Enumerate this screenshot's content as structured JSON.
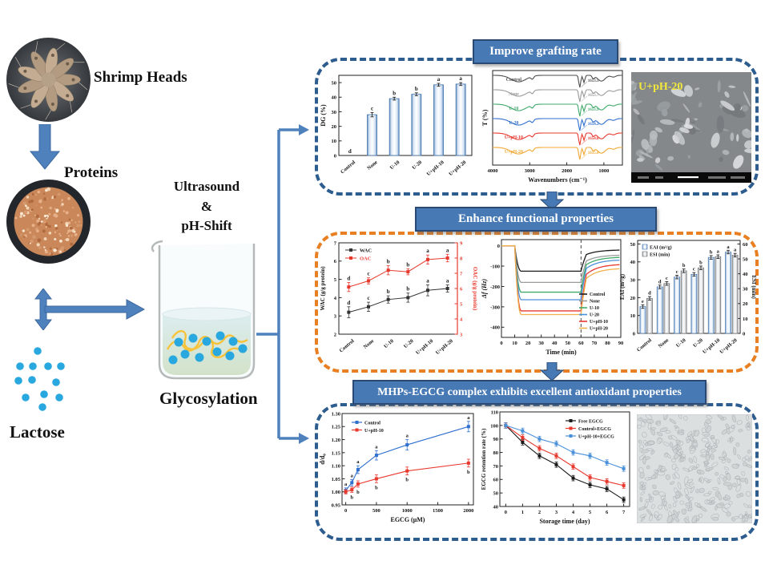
{
  "left_flow": {
    "shrimp_label": "Shrimp Heads",
    "proteins_label": "Proteins",
    "ultrasound_lines": [
      "Ultrasound",
      "&",
      "pH-Shift"
    ],
    "glycosylation_label": "Glycosylation",
    "lactose_label": "Lactose"
  },
  "panels": [
    {
      "title": "Improve grafting rate",
      "accent": "#2d5c8e"
    },
    {
      "title": "Enhance functional properties",
      "accent": "#e87f22"
    },
    {
      "title": "MHPs-EGCG complex exhibits excellent antioxidant properties",
      "accent": "#2d5c8e"
    }
  ],
  "sem_label": "U+pH-20",
  "colors": {
    "arrow_blue": "#4f81bd",
    "arrow_edge": "#3c68a0",
    "header_bg": "#4779b5",
    "header_border": "#2b4a73",
    "panel_blue": "#2d5c8e",
    "panel_orange": "#e87f22",
    "lactose_dot": "#29a8e0"
  },
  "chart_data": [
    {
      "id": "dg_bar",
      "type": "bar",
      "ylabel": "DG (%)",
      "categories": [
        "Control",
        "None",
        "U-10",
        "U-20",
        "U+pH-10",
        "U+pH-20"
      ],
      "values": [
        0,
        28,
        39,
        42,
        48.5,
        49
      ],
      "errors": [
        0,
        1.5,
        1,
        1,
        1,
        1
      ],
      "letters": [
        "d",
        "c",
        "b",
        "b",
        "a",
        "a"
      ],
      "ylim": [
        0,
        55
      ],
      "yticks": [
        0,
        10,
        20,
        30,
        40,
        50
      ]
    },
    {
      "id": "ftir",
      "type": "line",
      "xlabel": "Wavenumbers (cm⁻¹)",
      "ylabel": "T (%)",
      "xlim": [
        4000,
        500
      ],
      "xticks": [
        4000,
        3000,
        2000,
        1000
      ],
      "series": [
        {
          "name": "Control",
          "color": "#4d4d4d",
          "peak_label": "1653.5"
        },
        {
          "name": "None",
          "color": "#9a9a9a",
          "peak_label": "1653.7"
        },
        {
          "name": "U-10",
          "color": "#3fa96a",
          "peak_label": "1653.9"
        },
        {
          "name": "U-20",
          "color": "#2f6fce",
          "peak_label": "1654.2"
        },
        {
          "name": "U+pH-10",
          "color": "#e8392e",
          "peak_label": "1654.8"
        },
        {
          "name": "U+pH-20",
          "color": "#f0a830",
          "peak_label": "1655.0"
        }
      ],
      "note": "stacked FTIR transmittance curves, amide I peak positions annotated"
    },
    {
      "id": "wac_oac",
      "type": "line",
      "categories": [
        "Control",
        "None",
        "U-10",
        "U-20",
        "U+pH-10",
        "U+pH-20"
      ],
      "left": {
        "label": "WAC (g/g protein)",
        "ylim": [
          2,
          7
        ],
        "yticks": [
          2,
          3,
          4,
          5,
          6,
          7
        ],
        "name": "WAC",
        "color": "#333333",
        "values": [
          3.2,
          3.5,
          3.9,
          4.0,
          4.4,
          4.5
        ],
        "errors": [
          0.3,
          0.25,
          0.2,
          0.25,
          0.3,
          0.2
        ],
        "letters": [
          "d",
          "c",
          "b",
          "b",
          "a",
          "a"
        ]
      },
      "right": {
        "label": "OAC (g/g protein)",
        "ylim": [
          3,
          9
        ],
        "yticks": [
          3,
          4,
          5,
          6,
          7,
          8,
          9
        ],
        "name": "OAC",
        "color": "#e8392e",
        "values": [
          6.1,
          6.5,
          7.2,
          7.1,
          7.9,
          8.0
        ],
        "errors": [
          0.3,
          0.2,
          0.3,
          0.2,
          0.3,
          0.25
        ],
        "letters": [
          "d",
          "c",
          "b",
          "b",
          "a",
          "a"
        ]
      }
    },
    {
      "id": "qcm",
      "type": "line",
      "xlabel": "Time (min)",
      "ylabel": "Δf (Hz)",
      "xlim": [
        0,
        90
      ],
      "xticks": [
        0,
        10,
        20,
        30,
        40,
        50,
        60,
        70,
        80,
        90
      ],
      "ylim": [
        -450,
        30
      ],
      "yticks": [
        0,
        -100,
        -200,
        -300,
        -400
      ],
      "dashed_line_x": 60,
      "series": [
        {
          "name": "Control",
          "color": "#1a1a1a",
          "plateau": -125,
          "end": -20
        },
        {
          "name": "None",
          "color": "#9a9a9a",
          "plateau": -180,
          "end": -45
        },
        {
          "name": "U-10",
          "color": "#3fa96a",
          "plateau": -228,
          "end": -55
        },
        {
          "name": "U-20",
          "color": "#4a90d9",
          "plateau": -265,
          "end": -68
        },
        {
          "name": "U+pH-10",
          "color": "#e8392e",
          "plateau": -320,
          "end": -90
        },
        {
          "name": "U+pH-20",
          "color": "#f0b04a",
          "plateau": -338,
          "end": -110
        }
      ]
    },
    {
      "id": "eai_esi",
      "type": "bar",
      "categories": [
        "Control",
        "None",
        "U-10",
        "U-20",
        "U+pH-10",
        "U+pH-20"
      ],
      "left": {
        "legend": "EAI (m²/g)",
        "label": "EAI (m²/g)",
        "ylim": [
          0,
          52
        ],
        "yticks": [
          0,
          10,
          20,
          30,
          40,
          50
        ],
        "values": [
          15,
          26,
          31.5,
          33,
          42.5,
          45.5
        ],
        "errors": [
          1,
          1,
          1,
          1,
          1,
          1
        ],
        "letters": [
          "e",
          "d",
          "c",
          "c",
          "b",
          "a"
        ]
      },
      "right": {
        "legend": "ESI (min)",
        "label": "ESI (min)",
        "ylim": [
          0,
          62.4
        ],
        "yticks": [
          0,
          10,
          20,
          30,
          40,
          50,
          60
        ],
        "values": [
          23.5,
          33.5,
          42,
          44,
          51.5,
          52.5
        ],
        "errors": [
          1.2,
          1.2,
          1.2,
          1.2,
          1.2,
          1.2
        ],
        "letters": [
          "d",
          "c",
          "b",
          "b",
          "a",
          "a"
        ]
      }
    },
    {
      "id": "dd0",
      "type": "line",
      "xlabel": "EGCG (μM)",
      "ylabel": "d/d₀",
      "xlim": [
        -60,
        2080
      ],
      "xticks": [
        0,
        500,
        1000,
        1500,
        2000
      ],
      "ylim": [
        0.95,
        1.3
      ],
      "yticks": [
        0.95,
        1.0,
        1.05,
        1.1,
        1.15,
        1.2,
        1.25,
        1.3
      ],
      "ytick_labels": [
        "0.95",
        "1.00",
        "1.05",
        "1.10",
        "1.15",
        "1.20",
        "1.25",
        "1.30"
      ],
      "x": [
        0,
        100,
        200,
        500,
        1000,
        2000
      ],
      "legend_pos": "top-left",
      "series": [
        {
          "name": "Control",
          "color": "#2f6fce",
          "values": [
            1.005,
            1.035,
            1.085,
            1.14,
            1.18,
            1.25
          ],
          "errors": [
            0.01,
            0.012,
            0.015,
            0.018,
            0.02,
            0.02
          ],
          "letters": [
            "a",
            "a",
            "a",
            "a",
            "a",
            "a"
          ],
          "letter_pos": "above"
        },
        {
          "name": "U+pH-10",
          "color": "#e8392e",
          "values": [
            1.0,
            1.008,
            1.03,
            1.05,
            1.08,
            1.11
          ],
          "errors": [
            0.008,
            0.01,
            0.012,
            0.015,
            0.015,
            0.015
          ],
          "letters": [
            "",
            "b",
            "b",
            "b",
            "b",
            "b"
          ],
          "letter_pos": "below"
        }
      ]
    },
    {
      "id": "retention",
      "type": "line",
      "xlabel": "Storage time (day)",
      "ylabel": "EGCG retention rate (%)",
      "xlim": [
        -0.35,
        7.35
      ],
      "xticks": [
        0,
        1,
        2,
        3,
        4,
        5,
        6,
        7
      ],
      "ylim": [
        40,
        110
      ],
      "yticks": [
        40,
        50,
        60,
        70,
        80,
        90,
        100,
        110
      ],
      "ytick_labels": [
        "40",
        "50",
        "60",
        "70",
        "80",
        "90",
        "100",
        "110"
      ],
      "x": [
        0,
        1,
        2,
        3,
        4,
        5,
        6,
        7
      ],
      "err": 2,
      "legend_pos": "top-right",
      "series": [
        {
          "name": "Free EGCG",
          "color": "#1a1a1a",
          "values": [
            100,
            87.5,
            77.5,
            71,
            61,
            56,
            53,
            45
          ]
        },
        {
          "name": "Control+EGCG",
          "color": "#e8392e",
          "values": [
            100,
            91,
            83,
            77.5,
            69.5,
            61.5,
            58.5,
            55.5
          ]
        },
        {
          "name": "U+pH-10+EGCG",
          "color": "#4a90d9",
          "values": [
            100,
            96,
            90,
            86.5,
            80,
            77.5,
            72.5,
            68
          ]
        }
      ]
    }
  ]
}
